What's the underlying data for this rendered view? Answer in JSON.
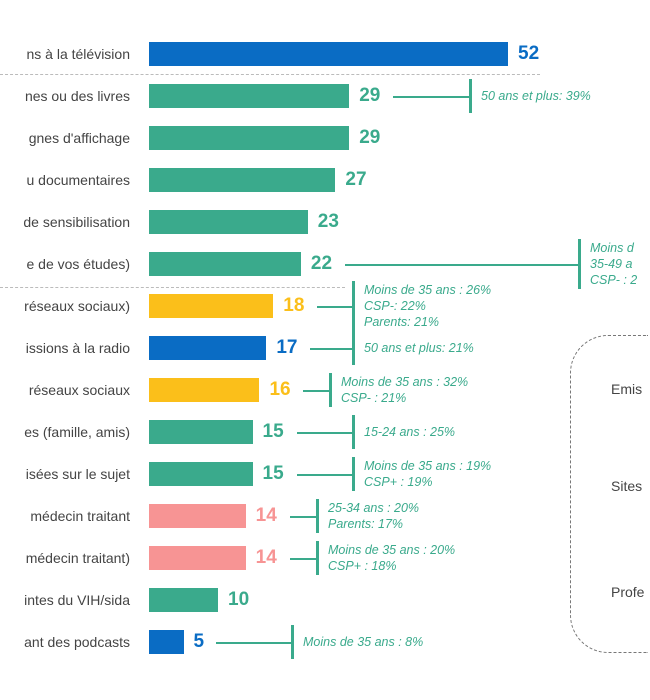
{
  "colors": {
    "tv_radio_podcast": "#0a6cc4",
    "general": "#3aaa8c",
    "social": "#fbbf1a",
    "doctor": "#f79494",
    "annotation": "#3aaa8c"
  },
  "chart_data": {
    "type": "bar",
    "orientation": "horizontal",
    "categories": [
      "ns à la télévision",
      "nes ou des livres",
      "gnes d'affichage",
      "u documentaires",
      "de sensibilisation",
      "e de vos études)",
      "réseaux sociaux)",
      "issions à la radio",
      "réseaux sociaux",
      "es (famille, amis)",
      "isées sur le sujet",
      "médecin traitant",
      "médecin traitant)",
      "intes du VIH/sida",
      "ant des podcasts"
    ],
    "values": [
      52,
      29,
      29,
      27,
      23,
      22,
      18,
      17,
      16,
      15,
      15,
      14,
      14,
      10,
      5
    ],
    "bar_colors": [
      "tv_radio_podcast",
      "general",
      "general",
      "general",
      "general",
      "general",
      "social",
      "tv_radio_podcast",
      "social",
      "general",
      "general",
      "doctor",
      "doctor",
      "general",
      "tv_radio_podcast"
    ],
    "annotations": [
      [],
      [
        "50 ans et plus: 39%"
      ],
      [],
      [],
      [],
      [
        "Moins d",
        "35-49 a",
        "CSP- : 2"
      ],
      [
        "Moins de 35 ans : 26%",
        "CSP-: 22%",
        "Parents: 21%"
      ],
      [
        "50 ans et plus: 21%"
      ],
      [
        "Moins de 35 ans : 32%",
        "CSP- : 21%"
      ],
      [
        "15-24 ans : 25%"
      ],
      [
        "Moins de 35 ans : 19%",
        "CSP+ : 19%"
      ],
      [
        "25-34 ans : 20%",
        "Parents: 17%"
      ],
      [
        "Moins de 35 ans : 20%",
        "CSP+ : 18%"
      ],
      [],
      [
        "Moins de 35 ans : 8%"
      ]
    ],
    "xlim": [
      0,
      52
    ]
  },
  "side_box": {
    "items": [
      "Emis",
      "Sites",
      "Profe"
    ]
  }
}
